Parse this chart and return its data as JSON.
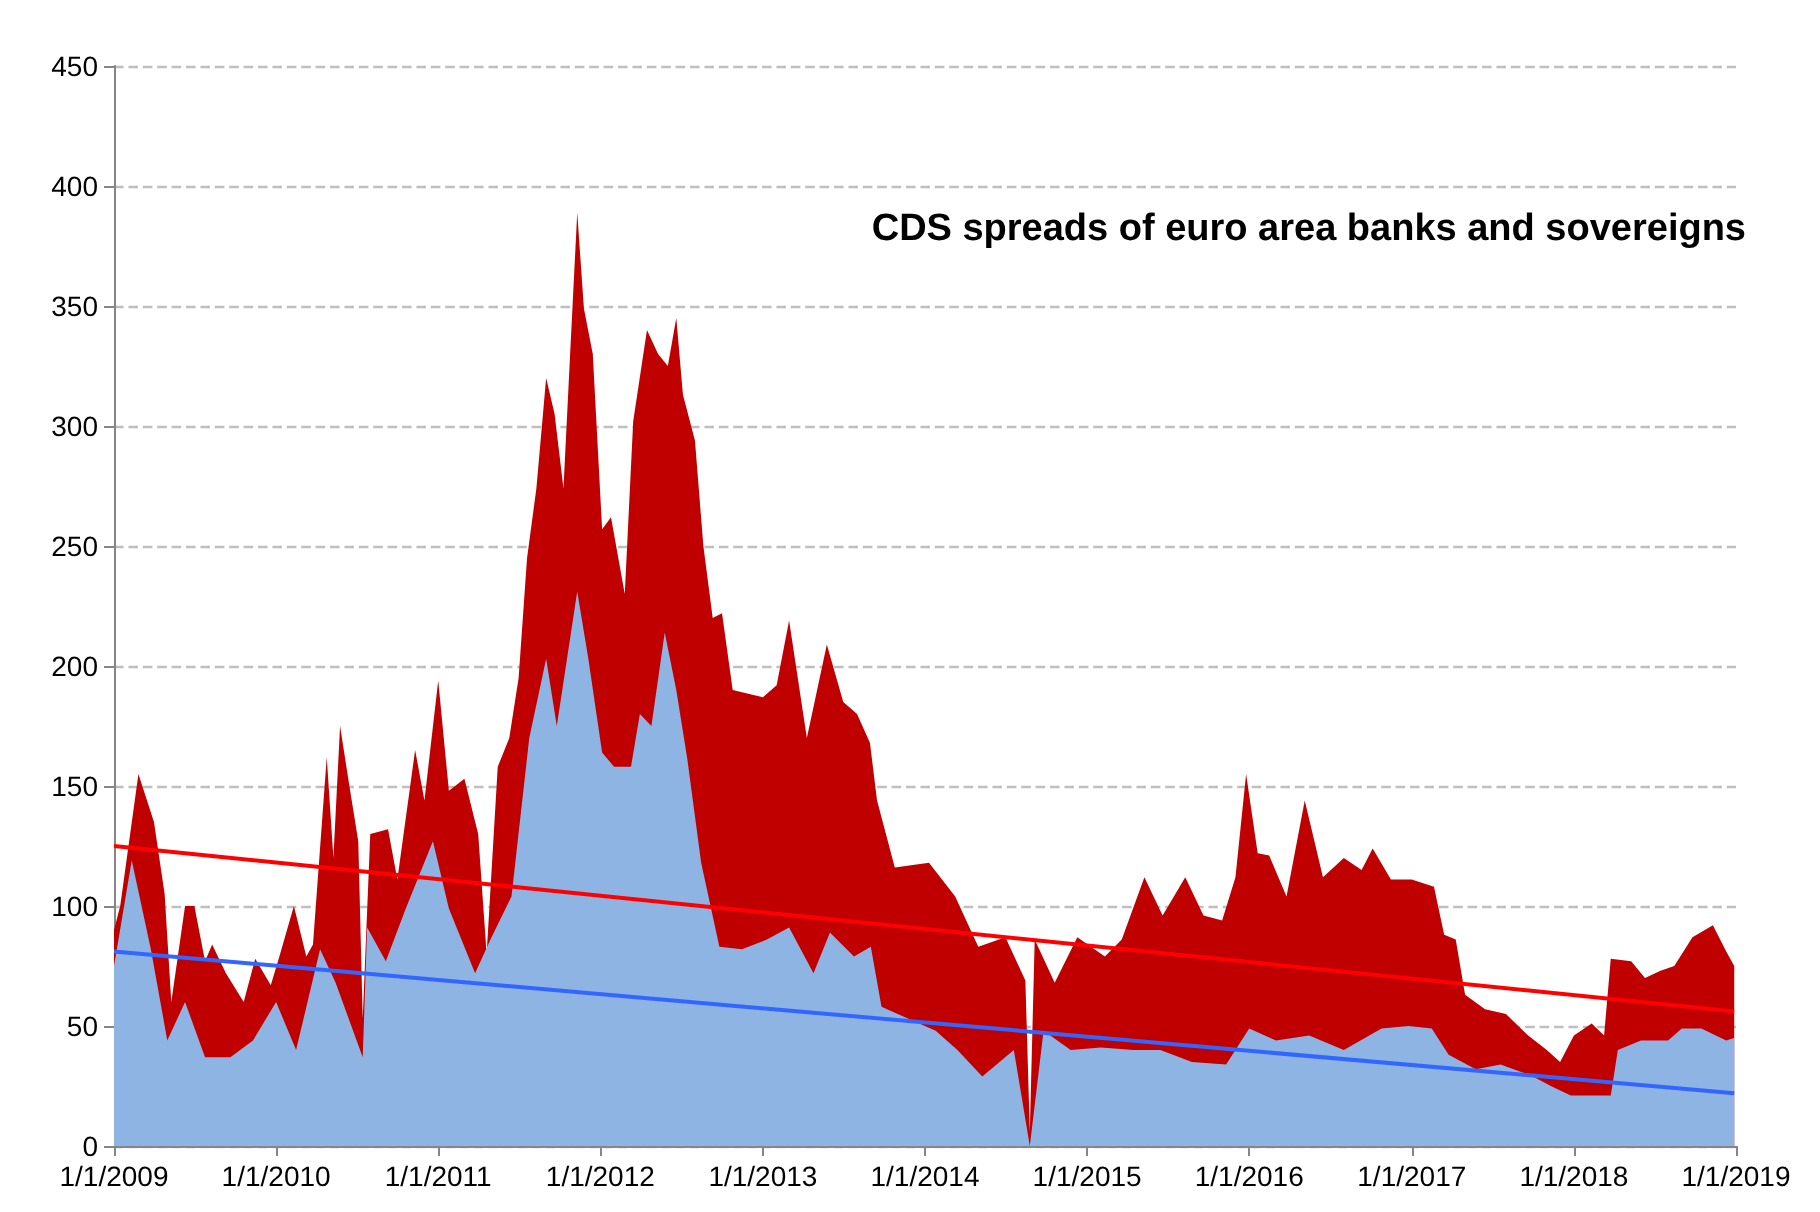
{
  "chart_data": {
    "type": "area",
    "title": "CDS spreads of euro area banks and sovereigns",
    "xlim": [
      "2009-01-01",
      "2019-01-01"
    ],
    "xticks": [
      {
        "value": "2009-01-01",
        "label": "1/1/2009"
      },
      {
        "value": "2010-01-01",
        "label": "1/1/2010"
      },
      {
        "value": "2011-01-01",
        "label": "1/1/2011"
      },
      {
        "value": "2012-01-01",
        "label": "1/1/2012"
      },
      {
        "value": "2013-01-01",
        "label": "1/1/2013"
      },
      {
        "value": "2014-01-01",
        "label": "1/1/2014"
      },
      {
        "value": "2015-01-01",
        "label": "1/1/2015"
      },
      {
        "value": "2016-01-01",
        "label": "1/1/2016"
      },
      {
        "value": "2017-01-01",
        "label": "1/1/2017"
      },
      {
        "value": "2018-01-01",
        "label": "1/1/2018"
      },
      {
        "value": "2019-01-01",
        "label": "1/1/2019"
      }
    ],
    "ylim": [
      0,
      450
    ],
    "yticks": [
      0,
      50,
      100,
      150,
      200,
      250,
      300,
      350,
      400,
      450
    ],
    "grid": "y",
    "marker": "none",
    "series": [
      {
        "color": "#c00000",
        "x": [
          "2009-01-01",
          "2009-01-15",
          "2009-02-25",
          "2009-04-01",
          "2009-04-25",
          "2009-05-10",
          "2009-06-10",
          "2009-07-01",
          "2009-07-25",
          "2009-08-10",
          "2009-09-10",
          "2009-10-20",
          "2009-11-15",
          "2009-12-20",
          "2010-01-10",
          "2010-02-10",
          "2010-03-10",
          "2010-03-25",
          "2010-04-25",
          "2010-05-10",
          "2010-05-25",
          "2010-06-15",
          "2010-07-05",
          "2010-07-15",
          "2010-08-01",
          "2010-09-10",
          "2010-10-01",
          "2010-11-10",
          "2010-12-01",
          "2011-01-01",
          "2011-01-25",
          "2011-03-01",
          "2011-04-01",
          "2011-04-20",
          "2011-05-15",
          "2011-06-10",
          "2011-07-01",
          "2011-07-20",
          "2011-08-10",
          "2011-09-01",
          "2011-09-20",
          "2011-10-10",
          "2011-10-25",
          "2011-11-10",
          "2011-11-25",
          "2011-12-15",
          "2012-01-05",
          "2012-01-25",
          "2012-02-25",
          "2012-03-15",
          "2012-04-15",
          "2012-05-10",
          "2012-06-01",
          "2012-06-20",
          "2012-07-05",
          "2012-08-01",
          "2012-08-20",
          "2012-09-10",
          "2012-10-01",
          "2012-10-25",
          "2013-01-01",
          "2013-02-01",
          "2013-03-01",
          "2013-04-10",
          "2013-05-25",
          "2013-07-01",
          "2013-08-01",
          "2013-08-30",
          "2013-09-15",
          "2013-10-25",
          "2014-01-10",
          "2014-03-10",
          "2014-05-01",
          "2014-07-01",
          "2014-08-15",
          "2014-08-25",
          "2014-09-05",
          "2014-10-20",
          "2014-12-10",
          "2015-02-10",
          "2015-03-20",
          "2015-05-10",
          "2015-06-20",
          "2015-08-10",
          "2015-09-20",
          "2015-11-01",
          "2015-12-01",
          "2015-12-25",
          "2016-01-20",
          "2016-02-15",
          "2016-03-25",
          "2016-05-05",
          "2016-06-15",
          "2016-08-01",
          "2016-09-10",
          "2016-10-05",
          "2016-11-15",
          "2017-01-01",
          "2017-02-20",
          "2017-03-15",
          "2017-04-10",
          "2017-05-01",
          "2017-06-15",
          "2017-08-01",
          "2017-09-20",
          "2017-11-01",
          "2017-12-01",
          "2018-01-01",
          "2018-02-10",
          "2018-03-10",
          "2018-03-25",
          "2018-05-10",
          "2018-06-10",
          "2018-07-15",
          "2018-08-15",
          "2018-09-25",
          "2018-11-10",
          "2018-12-10",
          "2018-12-28"
        ],
        "values": [
          90,
          100,
          155,
          135,
          105,
          60,
          100,
          100,
          77,
          84,
          72,
          60,
          78,
          67,
          80,
          100,
          79,
          84,
          162,
          120,
          175,
          150,
          127,
          53,
          130,
          132,
          111,
          165,
          144,
          194,
          148,
          153,
          130,
          80,
          158,
          170,
          195,
          245,
          274,
          320,
          305,
          274,
          330,
          389,
          349,
          330,
          257,
          262,
          230,
          302,
          340,
          330,
          325,
          345,
          313,
          294,
          250,
          220,
          222,
          190,
          187,
          192,
          219,
          170,
          209,
          185,
          180,
          168,
          144,
          116,
          118,
          104,
          83,
          87,
          69,
          6,
          86,
          68,
          87,
          79,
          86,
          112,
          96,
          112,
          96,
          94,
          112,
          155,
          122,
          121,
          104,
          144,
          112,
          120,
          115,
          124,
          111,
          111,
          108,
          88,
          86,
          63,
          57,
          55,
          46,
          40,
          35,
          46,
          51,
          46,
          78,
          77,
          70,
          73,
          75,
          87,
          92,
          81,
          75
        ]
      },
      {
        "color": "#8eb4e3",
        "x": [
          "2009-01-01",
          "2009-02-10",
          "2009-03-25",
          "2009-05-01",
          "2009-06-10",
          "2009-07-25",
          "2009-09-20",
          "2009-11-10",
          "2010-01-01",
          "2010-02-15",
          "2010-04-10",
          "2010-05-15",
          "2010-07-15",
          "2010-07-25",
          "2010-09-05",
          "2010-10-20",
          "2010-12-20",
          "2011-01-25",
          "2011-03-25",
          "2011-05-01",
          "2011-06-15",
          "2011-07-25",
          "2011-09-01",
          "2011-09-25",
          "2011-11-10",
          "2011-12-05",
          "2012-01-05",
          "2012-02-01",
          "2012-03-10",
          "2012-03-30",
          "2012-04-25",
          "2012-05-25",
          "2012-06-20",
          "2012-07-15",
          "2012-08-15",
          "2012-09-25",
          "2012-11-15",
          "2013-01-10",
          "2013-03-01",
          "2013-04-25",
          "2013-06-01",
          "2013-07-25",
          "2013-09-01",
          "2013-09-25",
          "2013-11-25",
          "2014-01-25",
          "2014-03-15",
          "2014-05-10",
          "2014-07-20",
          "2014-08-25",
          "2014-09-25",
          "2014-11-25",
          "2015-02-01",
          "2015-04-15",
          "2015-06-15",
          "2015-08-25",
          "2015-11-10",
          "2016-01-01",
          "2016-03-01",
          "2016-05-15",
          "2016-08-01",
          "2016-10-25",
          "2016-12-25",
          "2017-02-15",
          "2017-03-25",
          "2017-05-25",
          "2017-07-20",
          "2017-10-01",
          "2017-11-10",
          "2017-12-25",
          "2018-02-10",
          "2018-03-25",
          "2018-04-10",
          "2018-06-01",
          "2018-08-01",
          "2018-09-01",
          "2018-10-15",
          "2018-12-10",
          "2018-12-28"
        ],
        "values": [
          75,
          119,
          82,
          44,
          60,
          37,
          37,
          44,
          60,
          40,
          82,
          68,
          37,
          91,
          77,
          99,
          127,
          99,
          72,
          87,
          104,
          170,
          203,
          175,
          231,
          203,
          164,
          158,
          158,
          180,
          175,
          214,
          190,
          161,
          118,
          83,
          82,
          86,
          91,
          72,
          89,
          79,
          83,
          58,
          53,
          48,
          40,
          29,
          40,
          0,
          48,
          40,
          41,
          40,
          40,
          35,
          34,
          49,
          44,
          46,
          40,
          49,
          50,
          49,
          38,
          32,
          34,
          29,
          25,
          21,
          21,
          21,
          40,
          44,
          44,
          49,
          49,
          44,
          45
        ]
      },
      {
        "type": "line",
        "color": "#ff0000",
        "x": [
          "2009-01-01",
          "2018-12-28"
        ],
        "values": [
          125,
          56
        ]
      },
      {
        "type": "line",
        "color": "#3366ff",
        "x": [
          "2009-01-01",
          "2018-12-28"
        ],
        "values": [
          81,
          22
        ]
      }
    ]
  }
}
